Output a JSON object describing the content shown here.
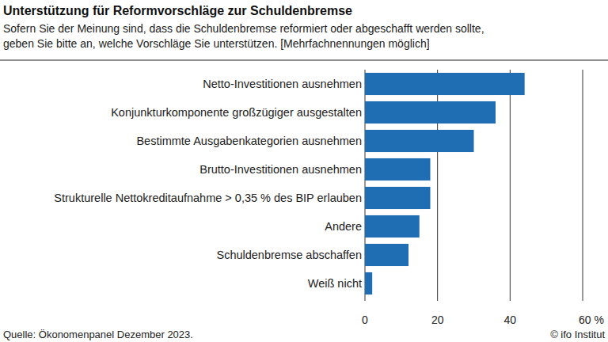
{
  "chart_data": {
    "type": "bar",
    "orientation": "horizontal",
    "title": "Unterstützung für Reformvorschläge zur Schuldenbremse",
    "subtitle": [
      "Sofern Sie der Meinung sind, dass die Schuldenbremse reformiert oder abgeschafft werden sollte,",
      "geben Sie bitte an, welche Vorschläge Sie unterstützen. [Mehrfachnennungen möglich]"
    ],
    "categories": [
      "Netto-Investitionen ausnehmen",
      "Konjunkturkomponente großzügiger ausgestalten",
      "Bestimmte Ausgabenkategorien ausnehmen",
      "Brutto-Investitionen ausnehmen",
      "Strukturelle Nettokreditaufnahme > 0,35 % des BIP erlauben",
      "Andere",
      "Schuldenbremse abschaffen",
      "Weiß nicht"
    ],
    "values": [
      44,
      36,
      30,
      18,
      18,
      15,
      12,
      2
    ],
    "color": "#1f6db3",
    "xlim": [
      0,
      60
    ],
    "xticks": [
      0,
      20,
      40,
      {
        "value": 60,
        "label": "60 %"
      }
    ],
    "grid": true,
    "source": "Quelle: Ökonomenpanel Dezember 2023.",
    "credit": "© ifo Institut"
  }
}
